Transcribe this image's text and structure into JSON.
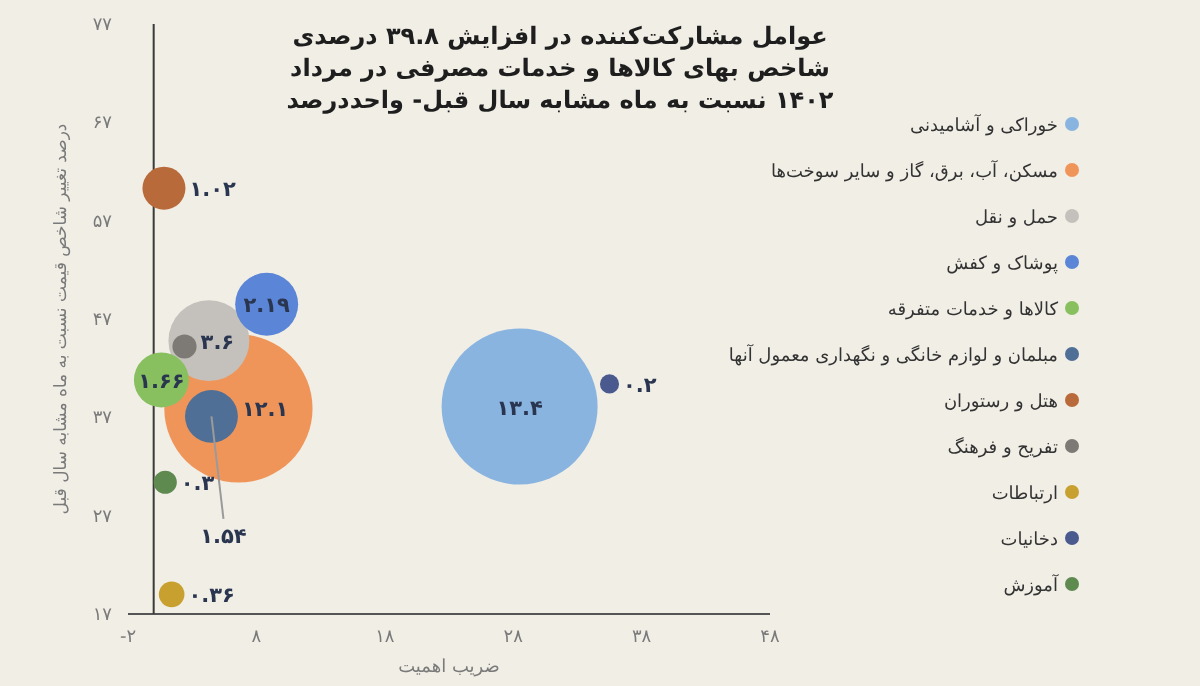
{
  "chart_data": {
    "type": "bubble",
    "title": "عوامل مشارکت‌کننده در افزایش ۳۹.۸ درصدی شاخص بهای کالاها و خدمات مصرفی در مرداد ۱۴۰۲ نسبت به ماه مشابه سال قبل- واحددرصد",
    "xlabel": "ضریب اهمیت",
    "ylabel": "درصد تغییر شاخص قیمت نسبت به ماه مشابه سال قبل",
    "xlim": [
      -2,
      48
    ],
    "ylim": [
      17,
      77
    ],
    "xticks": [
      {
        "value": -2,
        "label": "-۲"
      },
      {
        "value": 8,
        "label": "۸"
      },
      {
        "value": 18,
        "label": "۱۸"
      },
      {
        "value": 28,
        "label": "۲۸"
      },
      {
        "value": 38,
        "label": "۳۸"
      },
      {
        "value": 48,
        "label": "۴۸"
      }
    ],
    "yticks": [
      {
        "value": 17,
        "label": "۱۷"
      },
      {
        "value": 27,
        "label": "۲۷"
      },
      {
        "value": 37,
        "label": "۳۷"
      },
      {
        "value": 47,
        "label": "۴۷"
      },
      {
        "value": 57,
        "label": "۵۷"
      },
      {
        "value": 67,
        "label": "۶۷"
      },
      {
        "value": 77,
        "label": "۷۷"
      }
    ],
    "legend": "right",
    "series": [
      {
        "name": "خوراکی و آشامیدنی",
        "color": "#8ab4e0",
        "x": [
          28.5
        ],
        "values": [
          38.1
        ],
        "sizes": [
          1
        ]
      },
      {
        "name": "مسکن، آب، برق، گاز و سایر سوخت‌ها",
        "color": "#f0955a",
        "x": [
          6.6
        ],
        "values": [
          37.9
        ],
        "sizes": [
          0.903
        ]
      },
      {
        "name": "حمل و نقل",
        "color": "#c4c1bc",
        "x": [
          4.3
        ],
        "values": [
          44.8
        ],
        "sizes": [
          0.269
        ]
      },
      {
        "name": "پوشاک و کفش",
        "color": "#5b85d6",
        "x": [
          8.8
        ],
        "values": [
          48.5
        ],
        "sizes": [
          0.163
        ]
      },
      {
        "name": "کالاها و خدمات متفرقه",
        "color": "#88c060",
        "x": [
          0.6
        ],
        "values": [
          40.8
        ],
        "sizes": [
          0.124
        ]
      },
      {
        "name": "مبلمان و لوازم خانگی و نگهداری معمول آنها",
        "color": "#4f6f96",
        "x": [
          4.5
        ],
        "values": [
          37.1
        ],
        "sizes": [
          0.115
        ]
      },
      {
        "name": "هتل و رستوران",
        "color": "#b86a3a",
        "x": [
          0.8
        ],
        "values": [
          60.3
        ],
        "sizes": [
          0.076
        ]
      },
      {
        "name": "تفریح و فرهنگ",
        "color": "#7d7a75",
        "x": [
          2.4
        ],
        "values": [
          44.2
        ],
        "sizes": [
          0.024
        ]
      },
      {
        "name": "ارتباطات",
        "color": "#c8a030",
        "x": [
          1.4
        ],
        "values": [
          19.0
        ],
        "sizes": [
          0.027
        ]
      },
      {
        "name": "دخانیات",
        "color": "#4a5a8e",
        "x": [
          35.5
        ],
        "values": [
          40.4
        ],
        "sizes": [
          0.015
        ]
      },
      {
        "name": "آموزش",
        "color": "#5e8a50",
        "x": [
          0.9
        ],
        "values": [
          30.4
        ],
        "sizes": [
          0.022
        ]
      }
    ],
    "annotations": [
      {
        "text": "۱۳.۴",
        "x": 28.5,
        "y": 38.1
      },
      {
        "text": "۱۲.۱",
        "x": 6.6,
        "y": 37.9
      },
      {
        "text": "۳.۶",
        "x": 4.3,
        "y": 44.8
      },
      {
        "text": "۲.۱۹",
        "x": 8.8,
        "y": 48.5
      },
      {
        "text": "۱.۶۶",
        "x": 0.6,
        "y": 40.8
      },
      {
        "text": "۱.۵۴",
        "x": 4.5,
        "y": 37.1
      },
      {
        "text": "۱.۰۲",
        "x": 0.8,
        "y": 60.3
      },
      {
        "text": "۰.۳۶",
        "x": 1.4,
        "y": 19.0
      },
      {
        "text": "۰.۲",
        "x": 35.5,
        "y": 40.4
      },
      {
        "text": "۰.۳",
        "x": 0.9,
        "y": 30.4
      }
    ]
  }
}
